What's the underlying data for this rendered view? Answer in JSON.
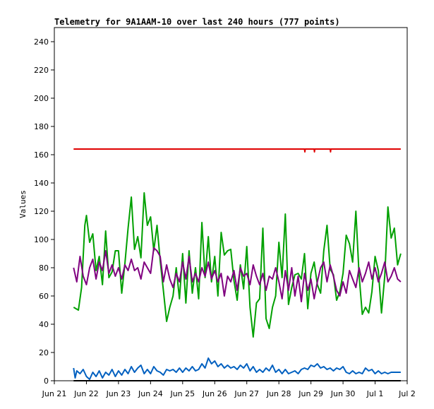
{
  "chart_data": {
    "type": "line",
    "title": "Telemetry for 9A1AAM-10 over last 240 hours (777 points)",
    "xlabel": "",
    "ylabel": "Values",
    "ylim": [
      0,
      250
    ],
    "yticks": [
      0,
      20,
      40,
      60,
      80,
      100,
      120,
      140,
      160,
      180,
      200,
      220,
      240
    ],
    "x_tick_labels": [
      "Jun 21",
      "Jun 22",
      "Jun 23",
      "Jun 24",
      "Jun 25",
      "Jun 26",
      "Jun 27",
      "Jun 28",
      "Jun 29",
      "Jun 30",
      "Jul 1",
      "Jul 2"
    ],
    "xlim": [
      0,
      11
    ],
    "grid": false,
    "series": [
      {
        "color": "#e00000",
        "x": [
          0.6,
          1.0,
          2.0,
          3.0,
          4.0,
          5.0,
          6.0,
          7.0,
          7.8,
          7.81,
          7.82,
          8.0,
          8.1,
          8.11,
          8.12,
          8.5,
          8.6,
          8.61,
          8.62,
          9.0,
          10.0,
          10.8
        ],
        "values": [
          164,
          164,
          164,
          164,
          164,
          164,
          164,
          164,
          164,
          162,
          164,
          164,
          164,
          162,
          164,
          164,
          164,
          162,
          164,
          164,
          164,
          164
        ]
      },
      {
        "color": "#00a000",
        "x": [
          0.6,
          0.75,
          0.85,
          0.95,
          1.0,
          1.1,
          1.2,
          1.3,
          1.4,
          1.5,
          1.6,
          1.7,
          1.8,
          1.9,
          2.0,
          2.1,
          2.2,
          2.3,
          2.4,
          2.5,
          2.6,
          2.7,
          2.8,
          2.9,
          3.0,
          3.1,
          3.2,
          3.3,
          3.4,
          3.5,
          3.6,
          3.7,
          3.8,
          3.9,
          4.0,
          4.1,
          4.2,
          4.3,
          4.4,
          4.5,
          4.6,
          4.7,
          4.8,
          4.9,
          5.0,
          5.1,
          5.2,
          5.3,
          5.4,
          5.5,
          5.6,
          5.7,
          5.8,
          5.9,
          6.0,
          6.1,
          6.2,
          6.3,
          6.4,
          6.5,
          6.6,
          6.7,
          6.8,
          6.9,
          7.0,
          7.1,
          7.2,
          7.3,
          7.4,
          7.5,
          7.6,
          7.7,
          7.8,
          7.9,
          8.0,
          8.1,
          8.2,
          8.3,
          8.4,
          8.5,
          8.6,
          8.7,
          8.8,
          8.9,
          9.0,
          9.1,
          9.2,
          9.3,
          9.4,
          9.5,
          9.6,
          9.7,
          9.8,
          9.9,
          10.0,
          10.1,
          10.2,
          10.3,
          10.4,
          10.5,
          10.6,
          10.7,
          10.8
        ],
        "values": [
          52,
          50,
          66,
          110,
          117,
          98,
          104,
          78,
          88,
          68,
          106,
          73,
          77,
          92,
          92,
          62,
          83,
          108,
          130,
          93,
          102,
          87,
          133,
          110,
          116,
          92,
          110,
          85,
          64,
          42,
          52,
          60,
          80,
          58,
          90,
          55,
          92,
          62,
          80,
          58,
          112,
          73,
          102,
          70,
          88,
          60,
          105,
          89,
          92,
          93,
          71,
          57,
          82,
          65,
          95,
          52,
          31,
          55,
          58,
          108,
          44,
          37,
          52,
          60,
          98,
          73,
          118,
          54,
          66,
          75,
          76,
          72,
          90,
          51,
          76,
          84,
          68,
          62,
          92,
          110,
          79,
          75,
          57,
          63,
          76,
          103,
          97,
          84,
          120,
          75,
          47,
          52,
          48,
          63,
          88,
          78,
          48,
          74,
          123,
          101,
          108,
          82,
          90
        ]
      },
      {
        "color": "#800080",
        "x": [
          0.6,
          0.7,
          0.8,
          0.9,
          1.0,
          1.1,
          1.2,
          1.3,
          1.4,
          1.5,
          1.6,
          1.7,
          1.8,
          1.9,
          2.0,
          2.1,
          2.2,
          2.3,
          2.4,
          2.5,
          2.6,
          2.7,
          2.8,
          2.9,
          3.0,
          3.1,
          3.2,
          3.3,
          3.4,
          3.5,
          3.6,
          3.7,
          3.8,
          3.9,
          4.0,
          4.1,
          4.2,
          4.3,
          4.4,
          4.5,
          4.6,
          4.7,
          4.8,
          4.9,
          5.0,
          5.1,
          5.2,
          5.3,
          5.4,
          5.5,
          5.6,
          5.7,
          5.8,
          5.9,
          6.0,
          6.1,
          6.2,
          6.3,
          6.4,
          6.5,
          6.6,
          6.7,
          6.8,
          6.9,
          7.0,
          7.1,
          7.2,
          7.3,
          7.4,
          7.5,
          7.6,
          7.7,
          7.8,
          7.9,
          8.0,
          8.1,
          8.2,
          8.3,
          8.4,
          8.5,
          8.6,
          8.7,
          8.8,
          8.9,
          9.0,
          9.1,
          9.2,
          9.3,
          9.4,
          9.5,
          9.6,
          9.7,
          9.8,
          9.9,
          10.0,
          10.1,
          10.2,
          10.3,
          10.4,
          10.5,
          10.6,
          10.7,
          10.8
        ],
        "values": [
          80,
          70,
          88,
          74,
          68,
          80,
          86,
          72,
          84,
          78,
          92,
          76,
          82,
          74,
          80,
          72,
          82,
          78,
          86,
          78,
          80,
          72,
          84,
          80,
          76,
          94,
          92,
          88,
          70,
          82,
          72,
          66,
          76,
          70,
          84,
          72,
          88,
          70,
          76,
          70,
          80,
          74,
          84,
          72,
          78,
          70,
          76,
          60,
          74,
          70,
          78,
          64,
          80,
          74,
          76,
          68,
          82,
          74,
          68,
          76,
          64,
          74,
          72,
          80,
          70,
          58,
          78,
          64,
          80,
          60,
          74,
          56,
          76,
          64,
          72,
          58,
          70,
          80,
          84,
          70,
          82,
          74,
          64,
          60,
          70,
          62,
          78,
          72,
          66,
          80,
          70,
          76,
          84,
          72,
          80,
          70,
          76,
          84,
          70,
          74,
          80,
          72,
          70
        ]
      },
      {
        "color": "#0060c0",
        "x": [
          0.6,
          0.65,
          0.7,
          0.8,
          0.9,
          1.0,
          1.1,
          1.2,
          1.3,
          1.4,
          1.5,
          1.6,
          1.7,
          1.8,
          1.9,
          2.0,
          2.1,
          2.2,
          2.3,
          2.4,
          2.5,
          2.6,
          2.7,
          2.8,
          2.9,
          3.0,
          3.1,
          3.2,
          3.3,
          3.4,
          3.5,
          3.6,
          3.7,
          3.8,
          3.9,
          4.0,
          4.1,
          4.2,
          4.3,
          4.4,
          4.5,
          4.6,
          4.7,
          4.8,
          4.9,
          5.0,
          5.1,
          5.2,
          5.3,
          5.4,
          5.5,
          5.6,
          5.7,
          5.8,
          5.9,
          6.0,
          6.1,
          6.2,
          6.3,
          6.4,
          6.5,
          6.6,
          6.7,
          6.8,
          6.9,
          7.0,
          7.1,
          7.2,
          7.3,
          7.4,
          7.5,
          7.6,
          7.7,
          7.8,
          7.9,
          8.0,
          8.1,
          8.2,
          8.3,
          8.4,
          8.5,
          8.6,
          8.7,
          8.8,
          8.9,
          9.0,
          9.1,
          9.2,
          9.3,
          9.4,
          9.5,
          9.6,
          9.7,
          9.8,
          9.9,
          10.0,
          10.1,
          10.2,
          10.3,
          10.4,
          10.5,
          10.6,
          10.7,
          10.8
        ],
        "values": [
          9,
          2,
          7,
          5,
          8,
          3,
          1,
          6,
          3,
          7,
          2,
          6,
          4,
          8,
          3,
          7,
          4,
          8,
          5,
          10,
          6,
          9,
          11,
          5,
          8,
          5,
          10,
          7,
          6,
          4,
          8,
          7,
          8,
          6,
          9,
          6,
          9,
          7,
          10,
          7,
          8,
          12,
          9,
          16,
          12,
          14,
          10,
          12,
          9,
          11,
          9,
          10,
          8,
          11,
          9,
          12,
          7,
          10,
          6,
          8,
          6,
          9,
          7,
          11,
          6,
          8,
          5,
          8,
          5,
          6,
          7,
          5,
          8,
          9,
          8,
          11,
          10,
          12,
          9,
          10,
          8,
          9,
          7,
          9,
          8,
          10,
          6,
          5,
          7,
          5,
          6,
          5,
          9,
          7,
          8,
          5,
          7,
          5,
          6,
          5,
          6,
          6,
          6,
          6
        ]
      },
      {
        "color": "#000000",
        "x": [
          0.6,
          10.8
        ],
        "values": [
          0,
          0
        ]
      }
    ]
  }
}
